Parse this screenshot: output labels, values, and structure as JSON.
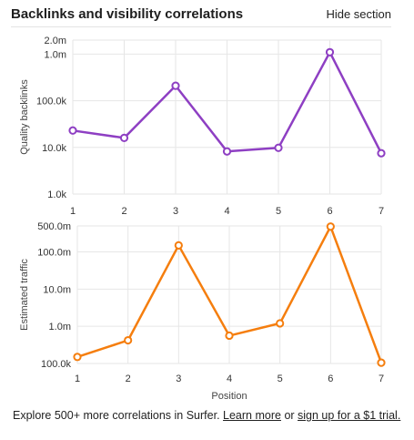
{
  "header": {
    "title": "Backlinks and visibility correlations",
    "hide_label": "Hide section"
  },
  "colors": {
    "backlinks_line": "#8e3fc3",
    "traffic_line": "#f57e0e",
    "grid": "#e6e6e6"
  },
  "chart_data": [
    {
      "type": "line",
      "scale": "log",
      "ylabel": "Quality backlinks",
      "xlabel": "",
      "x": [
        1,
        2,
        3,
        4,
        5,
        6,
        7
      ],
      "x_tick_labels": [
        "1",
        "2",
        "3",
        "4",
        "5",
        "6",
        "7"
      ],
      "ylim": [
        1000,
        2000000
      ],
      "y_ticks": [
        1000,
        10000,
        100000,
        1000000,
        2000000
      ],
      "y_tick_labels": [
        "1.0k",
        "10.0k",
        "100.0k",
        "1.0m",
        "2.0m"
      ],
      "series": [
        {
          "values": [
            23000,
            16000,
            210000,
            8200,
            9800,
            1100000,
            7500
          ]
        }
      ],
      "grid": true
    },
    {
      "type": "line",
      "scale": "log",
      "ylabel": "Estimated traffic",
      "xlabel": "Position",
      "x": [
        1,
        2,
        3,
        4,
        5,
        6,
        7
      ],
      "x_tick_labels": [
        "1",
        "2",
        "3",
        "4",
        "5",
        "6",
        "7"
      ],
      "ylim": [
        100000,
        500000000
      ],
      "y_ticks": [
        100000,
        1000000,
        10000000,
        100000000,
        500000000
      ],
      "y_tick_labels": [
        "100.0k",
        "1.0m",
        "10.0m",
        "100.0m",
        "500.0m"
      ],
      "series": [
        {
          "values": [
            150000,
            420000,
            150000000,
            560000,
            1200000,
            480000000,
            105000
          ]
        }
      ],
      "grid": true
    }
  ],
  "footer": {
    "text_before": "Explore 500+ more correlations in Surfer. ",
    "learn_more": "Learn more",
    "text_middle": " or ",
    "signup": "sign up for a $1 trial."
  }
}
